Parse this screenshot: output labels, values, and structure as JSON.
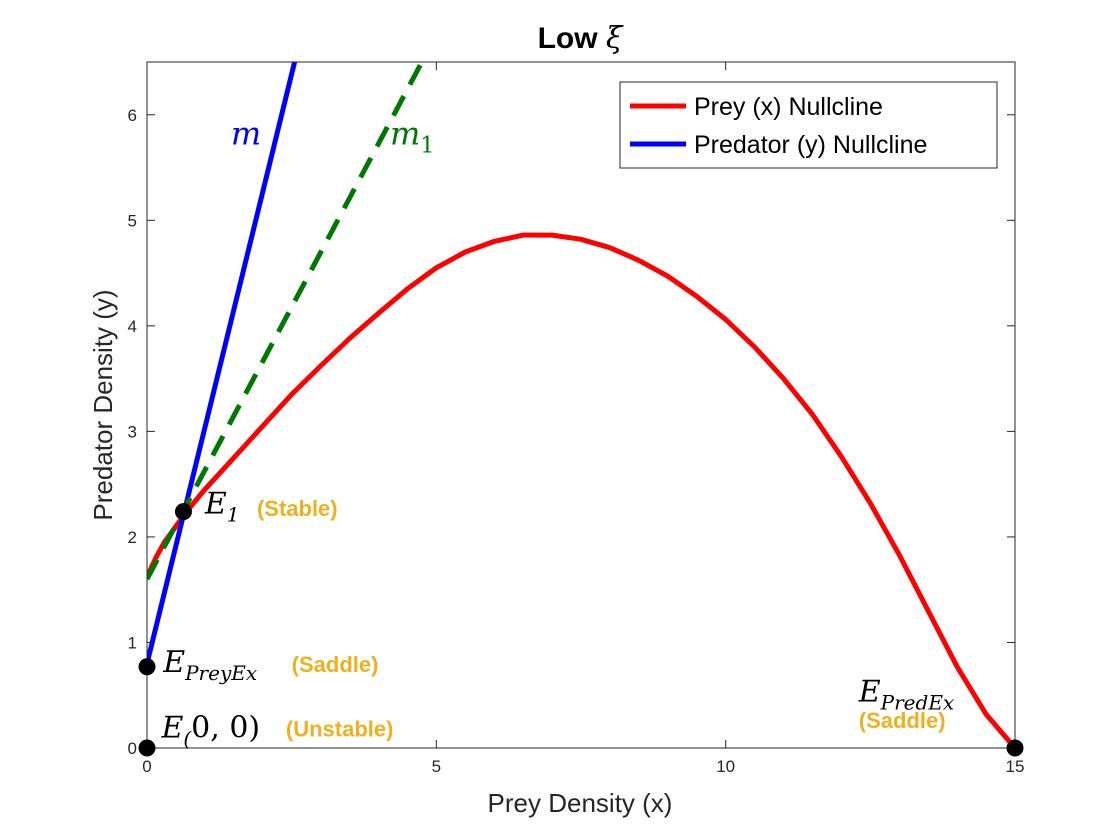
{
  "chart_data": {
    "type": "line",
    "title": "Low ",
    "title_symbol": "ξ",
    "xlabel": "Prey Density (x)",
    "ylabel": "Predator Density (y)",
    "xlim": [
      0,
      15
    ],
    "ylim": [
      0,
      6.5
    ],
    "xticks": [
      0,
      5,
      10,
      15
    ],
    "yticks": [
      0,
      1,
      2,
      3,
      4,
      5,
      6
    ],
    "grid": false,
    "legend_position": "top-right",
    "series": [
      {
        "name": "Prey (x) Nullcline",
        "color": "#FF0000",
        "style": "solid",
        "x": [
          0.0,
          0.15,
          0.3,
          0.5,
          0.7,
          1.0,
          1.5,
          2.0,
          2.5,
          3.0,
          3.5,
          4.0,
          4.5,
          5.0,
          5.5,
          6.0,
          6.5,
          7.0,
          7.5,
          8.0,
          8.5,
          9.0,
          9.5,
          10.0,
          10.5,
          11.0,
          11.5,
          12.0,
          12.5,
          13.0,
          13.5,
          14.0,
          14.5,
          15.0
        ],
        "y": [
          1.62,
          1.8,
          1.95,
          2.1,
          2.25,
          2.45,
          2.75,
          3.05,
          3.35,
          3.62,
          3.88,
          4.12,
          4.35,
          4.55,
          4.7,
          4.8,
          4.86,
          4.86,
          4.82,
          4.74,
          4.62,
          4.47,
          4.28,
          4.06,
          3.8,
          3.5,
          3.16,
          2.76,
          2.32,
          1.83,
          1.3,
          0.77,
          0.32,
          0.0
        ]
      },
      {
        "name": "Predator (y) Nullcline",
        "color": "#0000FF",
        "style": "solid",
        "x": [
          0.0,
          2.55
        ],
        "y": [
          0.8,
          6.5
        ]
      },
      {
        "name": "",
        "color": "#007700",
        "style": "dashed",
        "x": [
          0.0,
          4.75
        ],
        "y": [
          1.6,
          6.5
        ]
      }
    ],
    "equilibria": [
      {
        "x": 0.0,
        "y": 0.0
      },
      {
        "x": 0.0,
        "y": 0.77
      },
      {
        "x": 0.63,
        "y": 2.24
      },
      {
        "x": 15.0,
        "y": 0.0
      }
    ],
    "line_labels": [
      {
        "text": "m",
        "subscript": "",
        "color": "#0000FF",
        "at_x": 1.45,
        "at_y": 5.72
      },
      {
        "text": "m",
        "subscript": "1",
        "color": "#007700",
        "at_x": 4.2,
        "at_y": 5.72
      }
    ],
    "annotations": [
      {
        "math": "E",
        "subscript": "1",
        "at_x": 1.0,
        "at_y": 2.22,
        "status": "(Stable)",
        "status_at_x": 1.9,
        "status_at_y": 2.2
      },
      {
        "math": "E",
        "subscript": "PreyEx",
        "at_x": 0.28,
        "at_y": 0.72,
        "status": "(Saddle)",
        "status_at_x": 2.5,
        "status_at_y": 0.72
      },
      {
        "math": "E",
        "subscript": "(",
        "math_after": "0, 0)",
        "at_x": 0.25,
        "at_y": 0.1,
        "status": "(Unstable)",
        "status_at_x": 2.4,
        "status_at_y": 0.11
      },
      {
        "math": "E",
        "subscript": "PredEx",
        "at_x": 12.3,
        "at_y": 0.44,
        "status": "(Saddle)",
        "status_at_x": 12.3,
        "status_at_y": 0.19
      }
    ]
  }
}
